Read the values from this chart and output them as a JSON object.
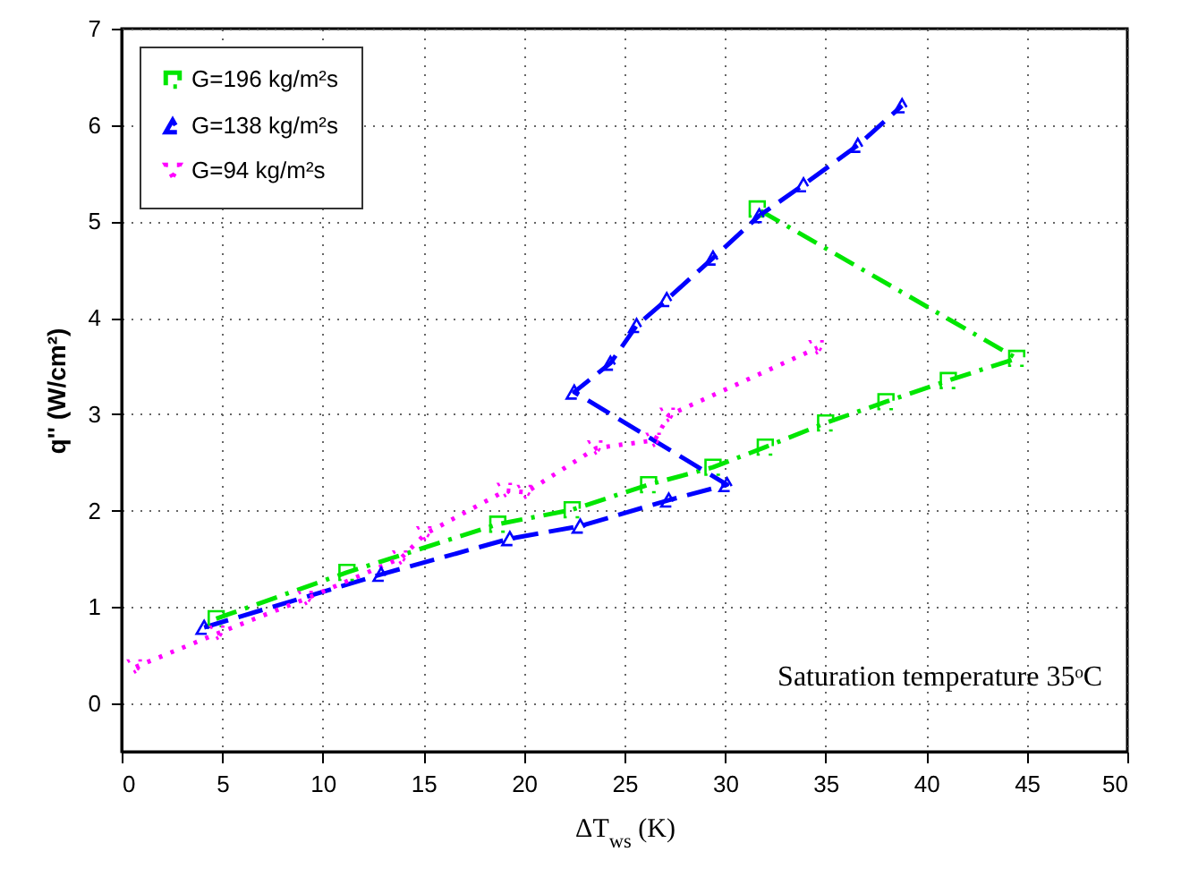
{
  "chart_data": {
    "type": "line",
    "xlabel": "ΔT$_{ws}$ (K)",
    "ylabel": "q'' (W/cm²)",
    "annotations": [
      "Saturation temperature 35ᵒC"
    ],
    "xlim": [
      0,
      50
    ],
    "xticks": [
      0,
      5,
      10,
      15,
      20,
      25,
      30,
      35,
      40,
      45,
      50
    ],
    "ylim": [
      -0.5,
      7
    ],
    "yticks": [
      0,
      1,
      2,
      3,
      4,
      5,
      6,
      7
    ],
    "grid": true,
    "legend": "top left",
    "series": [
      {
        "name": "G=196 kg/m²s",
        "color": "#00e600",
        "marker": "square",
        "line_style": "dashdot",
        "x": [
          4.7,
          11.2,
          18.7,
          22.4,
          26.2,
          29.4,
          32.0,
          35.0,
          38.0,
          41.1,
          44.5,
          31.6
        ],
        "values": [
          0.88,
          1.36,
          1.86,
          2.01,
          2.27,
          2.45,
          2.66,
          2.91,
          3.13,
          3.35,
          3.58,
          5.13
        ]
      },
      {
        "name": "G=138 kg/m²s",
        "color": "#0000ff",
        "marker": "triangle",
        "line_style": "dashed",
        "x": [
          4.1,
          12.9,
          19.3,
          22.8,
          27.2,
          30.1,
          22.5,
          24.3,
          25.6,
          27.1,
          29.4,
          31.7,
          33.9,
          36.6,
          38.8
        ],
        "values": [
          0.79,
          1.34,
          1.71,
          1.84,
          2.11,
          2.27,
          3.23,
          3.53,
          3.92,
          4.19,
          4.62,
          5.06,
          5.38,
          5.79,
          6.2
        ]
      },
      {
        "name": "G=94 kg/m²s",
        "color": "#ff00ff",
        "marker": "triangle-down",
        "line_style": "dotted",
        "x": [
          0.7,
          4.8,
          9.2,
          13.9,
          15.1,
          19.1,
          20.1,
          23.6,
          26.5,
          27.2,
          34.6
        ],
        "values": [
          0.38,
          0.73,
          1.09,
          1.51,
          1.76,
          2.21,
          2.19,
          2.65,
          2.73,
          2.99,
          3.69
        ]
      }
    ]
  }
}
